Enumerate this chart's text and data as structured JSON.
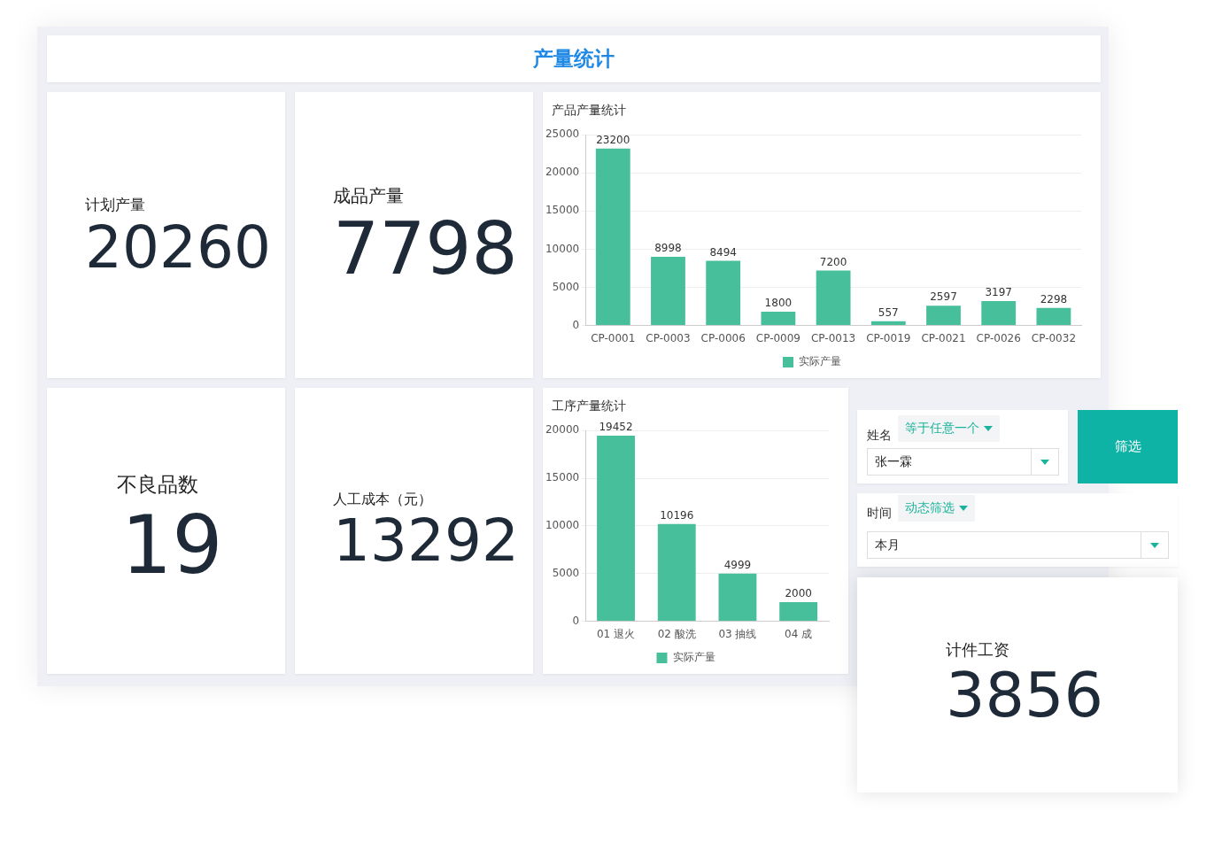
{
  "chart_data": [
    {
      "type": "other",
      "title": "产量统计"
    },
    {
      "type": "other",
      "title": "计划产量",
      "annotations": [
        "20260"
      ]
    },
    {
      "type": "other",
      "title": "成品产量",
      "annotations": [
        "7798"
      ]
    },
    {
      "type": "bar",
      "title": "产品产量统计",
      "categories": [
        "CP-0001",
        "CP-0003",
        "CP-0006",
        "CP-0009",
        "CP-0013",
        "CP-0019",
        "CP-0021",
        "CP-0026",
        "CP-0032"
      ],
      "series": [
        {
          "name": "实际产量",
          "color": "#48bf9b",
          "values": [
            23200,
            8998,
            8494,
            1800,
            7200,
            557,
            2597,
            3197,
            2298
          ]
        }
      ],
      "ylim": [
        0,
        25000
      ],
      "yticks": [
        0,
        5000,
        10000,
        15000,
        20000,
        25000
      ],
      "grid": "y",
      "legend": "bottom",
      "data_labels": true
    },
    {
      "type": "other",
      "title": "不良品数",
      "annotations": [
        "19"
      ]
    },
    {
      "type": "other",
      "title": "人工成本（元）",
      "annotations": [
        "13292"
      ]
    },
    {
      "type": "bar",
      "title": "工序产量统计",
      "categories": [
        "01 退火",
        "02 酸洗",
        "03 抽线",
        "04 成"
      ],
      "series": [
        {
          "name": "实际产量",
          "color": "#48bf9b",
          "values": [
            19452,
            10196,
            4999,
            2000
          ]
        }
      ],
      "ylim": [
        0,
        20000
      ],
      "yticks": [
        0,
        5000,
        10000,
        15000,
        20000
      ],
      "grid": "y",
      "legend": "bottom",
      "data_labels": true
    },
    {
      "type": "other",
      "annotations": [
        "姓名",
        "等于任意一个",
        "张一霖",
        "筛选",
        "时间",
        "动态筛选",
        "本月"
      ]
    },
    {
      "type": "other",
      "title": "计件工资",
      "annotations": [
        "3856"
      ]
    }
  ]
}
